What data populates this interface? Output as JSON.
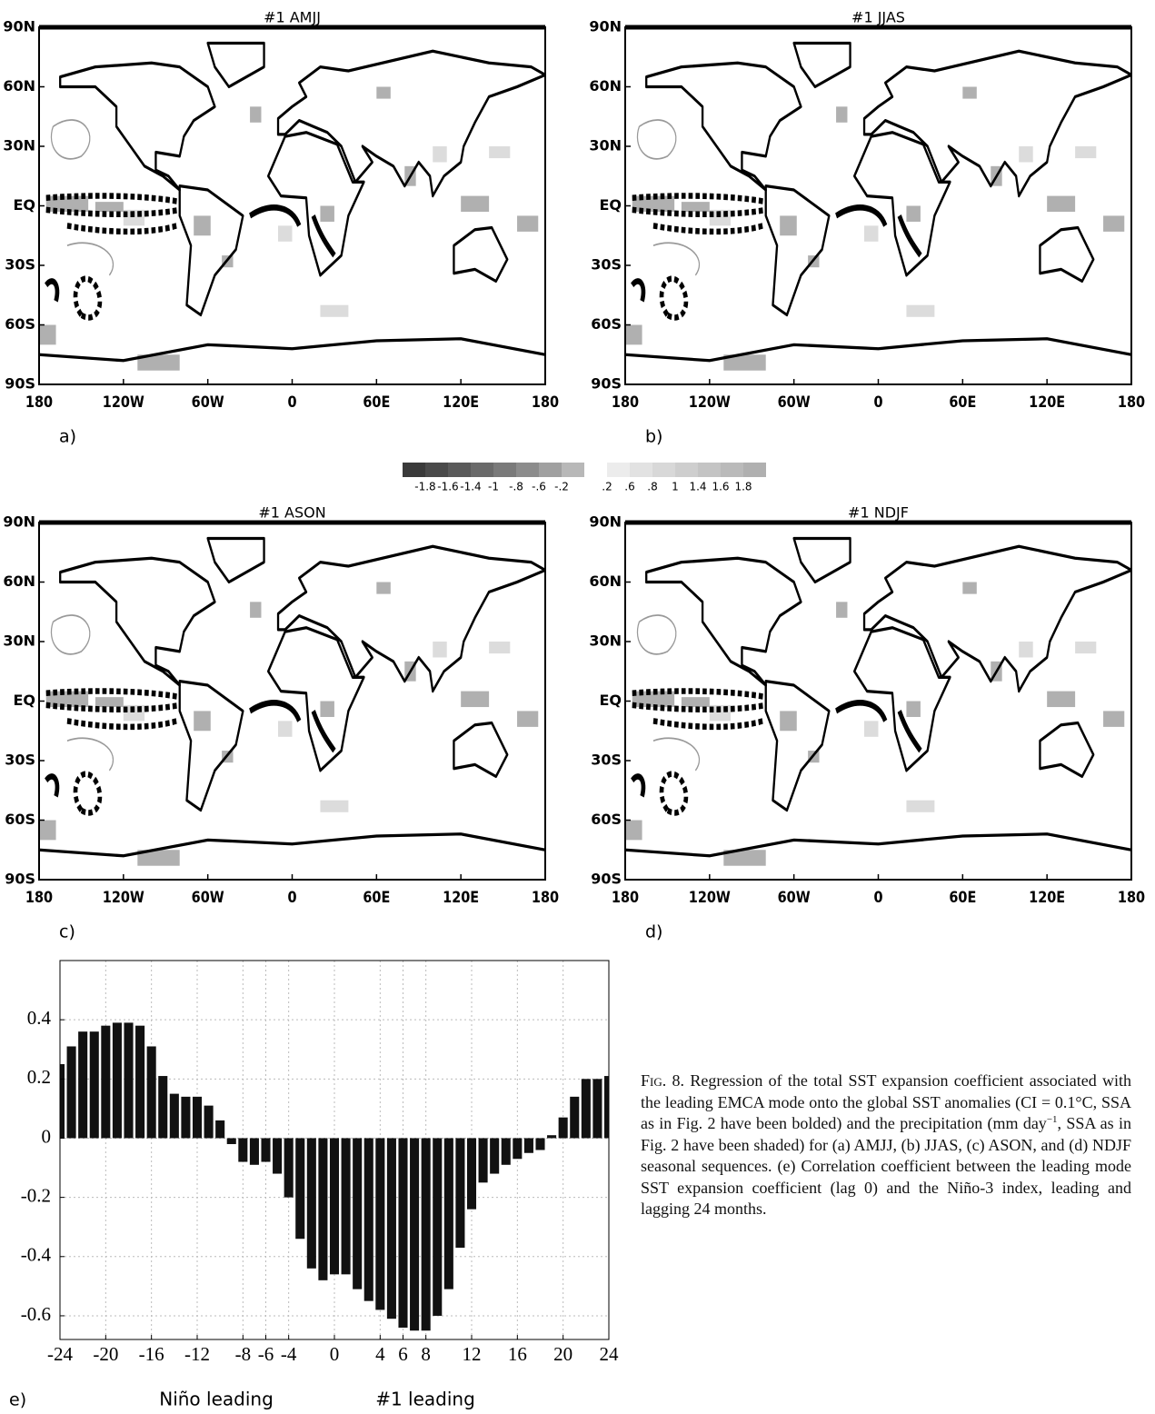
{
  "maps": [
    {
      "title": "#1 AMJJ",
      "panel": "a)"
    },
    {
      "title": "#1 JJAS",
      "panel": "b)"
    },
    {
      "title": "#1 ASON",
      "panel": "c)"
    },
    {
      "title": "#1 NDJF",
      "panel": "d)"
    }
  ],
  "map_lon_labels": [
    "180",
    "120W",
    "60W",
    "0",
    "60E",
    "120E",
    "180"
  ],
  "map_lat_labels": [
    "90N",
    "60N",
    "30N",
    "EQ",
    "30S",
    "60S",
    "90S"
  ],
  "colorbar": {
    "labels": [
      "-1.8",
      "-1.6",
      "-1.4",
      "-1",
      "-.8",
      "-.6",
      "-.2",
      ".2",
      ".6",
      ".8",
      "1",
      "1.4",
      "1.6",
      "1.8"
    ],
    "colors": [
      "#3a3a3a",
      "#4a4a4a",
      "#5a5a5a",
      "#6a6a6a",
      "#7a7a7a",
      "#8c8c8c",
      "#a0a0a0",
      "#b8b8b8",
      "#ffffff",
      "#ececec",
      "#e2e2e2",
      "#d8d8d8",
      "#cecece",
      "#c4c4c4",
      "#bababa",
      "#b0b0b0"
    ]
  },
  "chart_data": {
    "type": "bar",
    "x": [
      -24,
      -23,
      -22,
      -21,
      -20,
      -19,
      -18,
      -17,
      -16,
      -15,
      -14,
      -13,
      -12,
      -11,
      -10,
      -9,
      -8,
      -7,
      -6,
      -5,
      -4,
      -3,
      -2,
      -1,
      0,
      1,
      2,
      3,
      4,
      5,
      6,
      7,
      8,
      9,
      10,
      11,
      12,
      13,
      14,
      15,
      16,
      17,
      18,
      19,
      20,
      21,
      22,
      23,
      24
    ],
    "values": [
      0.25,
      0.31,
      0.36,
      0.36,
      0.38,
      0.39,
      0.39,
      0.38,
      0.31,
      0.21,
      0.15,
      0.14,
      0.14,
      0.11,
      0.06,
      -0.02,
      -0.08,
      -0.09,
      -0.08,
      -0.12,
      -0.2,
      -0.34,
      -0.44,
      -0.48,
      -0.46,
      -0.46,
      -0.51,
      -0.55,
      -0.58,
      -0.61,
      -0.64,
      -0.65,
      -0.65,
      -0.6,
      -0.51,
      -0.37,
      -0.24,
      -0.15,
      -0.12,
      -0.09,
      -0.07,
      -0.05,
      -0.04,
      0.01,
      0.07,
      0.14,
      0.2,
      0.2,
      0.21
    ],
    "color": "#111111",
    "xlim": [
      -24,
      24
    ],
    "ylim": [
      -0.68,
      0.6
    ],
    "xticks": [
      -24,
      -20,
      -16,
      -12,
      -8,
      -6,
      -4,
      0,
      4,
      6,
      8,
      12,
      16,
      20,
      24
    ],
    "yticks": [
      -0.6,
      -0.4,
      -0.2,
      0,
      0.2,
      0.4
    ],
    "grid": true,
    "panel": "e)",
    "annotations": [
      "Niño leading",
      "#1 leading"
    ]
  },
  "caption": {
    "label": "Fig. 8.",
    "text_1": "Regression of the total SST expansion coefficient associated with the leading EMCA mode onto the global SST anomalies (CI = 0.1°C, SSA as in Fig. 2 have been bolded) and the precipitation (mm day",
    "superscript": "−1",
    "text_2": ", SSA as in Fig. 2 have been shaded) for (a) AMJJ, (b) JJAS, (c) ASON, and (d) NDJF seasonal sequences. (e) Correlation coefficient between the leading mode SST expansion coefficient (lag 0) and the Niño-3 index, leading and lagging 24 months."
  }
}
